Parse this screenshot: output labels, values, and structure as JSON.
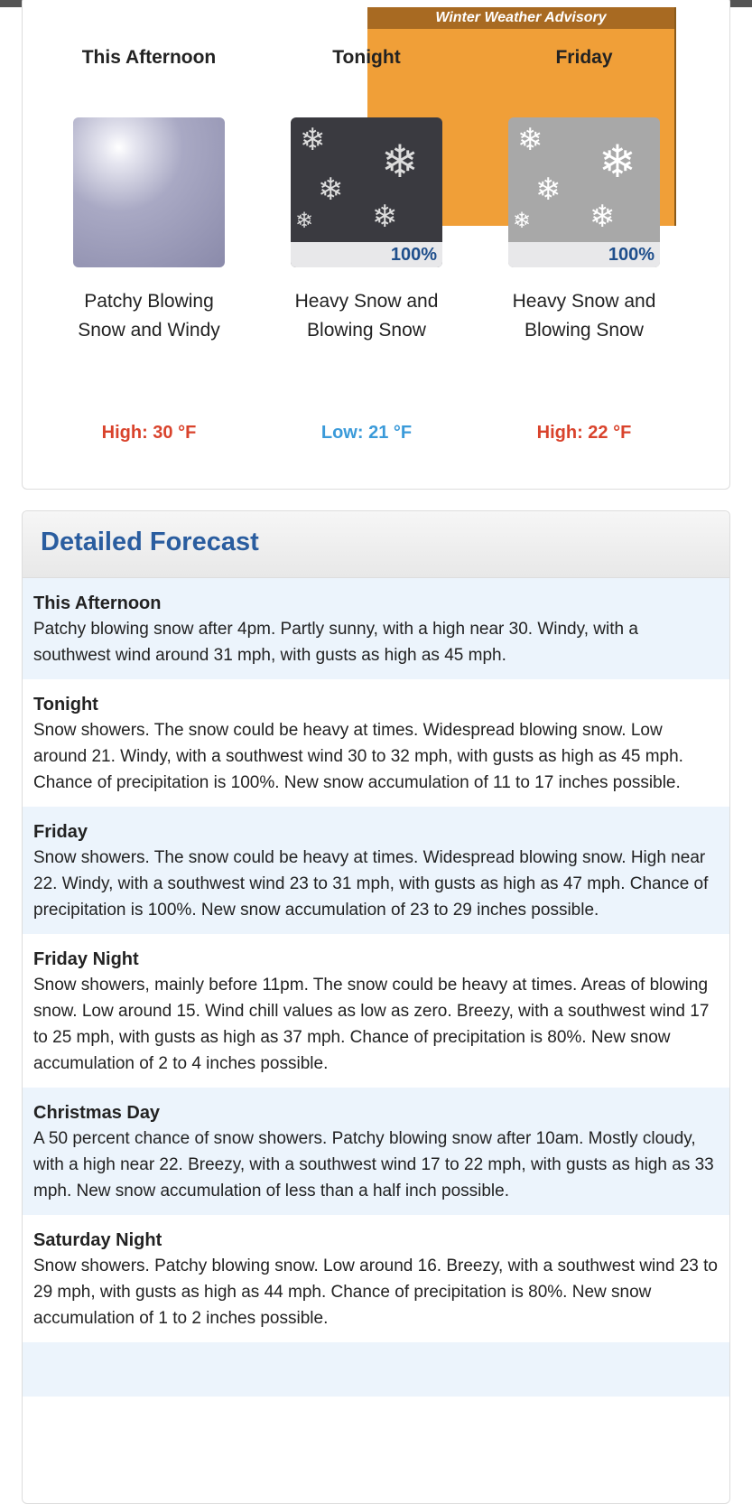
{
  "advisory": {
    "label": "Winter Weather Advisory",
    "color": "#f09f38"
  },
  "periods": [
    {
      "name": "This Afternoon",
      "icon": "patchy-blowing-snow-icon",
      "chance": "",
      "desc": "Patchy Blowing Snow and Windy",
      "temp": "High: 30 °F"
    },
    {
      "name": "Tonight",
      "icon": "heavy-snow-icon",
      "chance": "100%",
      "desc": "Heavy Snow and Blowing Snow",
      "temp": "Low: 21 °F"
    },
    {
      "name": "Friday",
      "icon": "heavy-snow-icon",
      "chance": "100%",
      "desc": "Heavy Snow and Blowing Snow",
      "temp": "High: 22 °F"
    }
  ],
  "detailed": {
    "title": "Detailed Forecast",
    "rows": [
      {
        "name": "This Afternoon",
        "text": "Patchy blowing snow after 4pm. Partly sunny, with a high near 30. Windy, with a southwest wind around 31 mph, with gusts as high as 45 mph."
      },
      {
        "name": "Tonight",
        "text": "Snow showers. The snow could be heavy at times. Widespread blowing snow. Low around 21. Windy, with a southwest wind 30 to 32 mph, with gusts as high as 45 mph. Chance of precipitation is 100%. New snow accumulation of 11 to 17 inches possible."
      },
      {
        "name": "Friday",
        "text": "Snow showers. The snow could be heavy at times. Widespread blowing snow. High near 22. Windy, with a southwest wind 23 to 31 mph, with gusts as high as 47 mph. Chance of precipitation is 100%. New snow accumulation of 23 to 29 inches possible."
      },
      {
        "name": "Friday Night",
        "text": "Snow showers, mainly before 11pm. The snow could be heavy at times. Areas of blowing snow. Low around 15. Wind chill values as low as zero. Breezy, with a southwest wind 17 to 25 mph, with gusts as high as 37 mph. Chance of precipitation is 80%. New snow accumulation of 2 to 4 inches possible."
      },
      {
        "name": "Christmas Day",
        "text": "A 50 percent chance of snow showers. Patchy blowing snow after 10am. Mostly cloudy, with a high near 22. Breezy, with a southwest wind 17 to 22 mph, with gusts as high as 33 mph. New snow accumulation of less than a half inch possible."
      },
      {
        "name": "Saturday Night",
        "text": "Snow showers. Patchy blowing snow. Low around 16. Breezy, with a southwest wind 23 to 29 mph, with gusts as high as 44 mph. Chance of precipitation is 80%. New snow accumulation of 1 to 2 inches possible."
      }
    ]
  }
}
